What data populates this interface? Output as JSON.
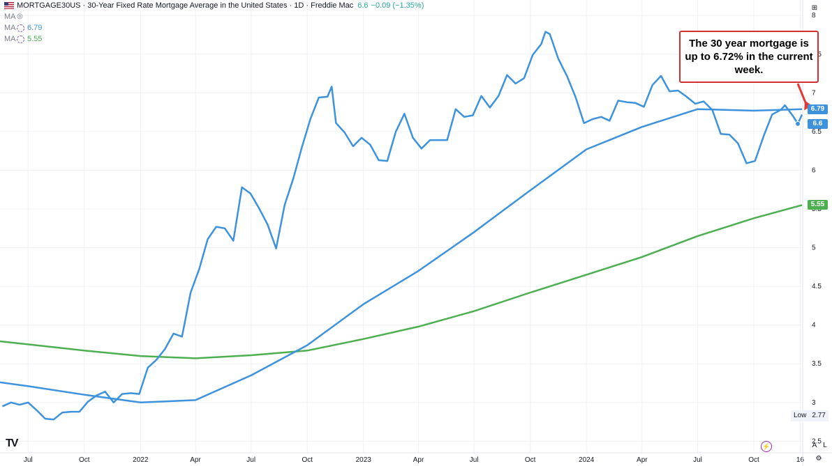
{
  "header": {
    "symbol": "MORTGAGE30US",
    "title": "30-Year Fixed Rate Mortgage Average in the United States",
    "interval": "1D",
    "source": "Freddie Mac",
    "last_value": "6.6",
    "change": "−0.09 (−1.35%)",
    "change_color": "#26a69a"
  },
  "legend": [
    {
      "label": "MA",
      "value": "",
      "color": "#787b86",
      "icon": "eye-icon"
    },
    {
      "label": "MA",
      "value": "6.79",
      "color": "#3d92dd",
      "icon": "ma-settings-icon"
    },
    {
      "label": "MA",
      "value": "5.55",
      "color": "#4caf50",
      "icon": "ma-settings-icon"
    }
  ],
  "annotation": {
    "text": "The 30 year mortgage is up to 6.72% in the current week.",
    "border_color": "#d32f2f",
    "arrow_color": "#e53935"
  },
  "price_labels": [
    {
      "value": "6.79",
      "color": "#3d92dd"
    },
    {
      "value": "6.6",
      "color": "#3d92dd"
    },
    {
      "value": "5.55",
      "color": "#4caf50"
    }
  ],
  "low_label": {
    "label": "Low",
    "value": "2.77"
  },
  "corner_buttons": {
    "auto": "A",
    "log": "L",
    "settings": "⚙",
    "scale": "⊞"
  },
  "logo": "TV",
  "colors": {
    "price": "#3d92dd",
    "ma_fast": "#3d92dd",
    "ma_slow": "#4caf50",
    "grid": "#f0f3fa"
  },
  "chart_data": {
    "type": "line",
    "title": "30-Year Fixed Rate Mortgage Average in the United States",
    "xlabel": "",
    "ylabel": "",
    "ylim": [
      2.35,
      8.2
    ],
    "x_range": [
      "2021-05-16",
      "2024-12-20"
    ],
    "grid": true,
    "y_ticks": [
      "2.5",
      "3",
      "3.5",
      "4",
      "4.5",
      "5",
      "5.5",
      "6",
      "6.5",
      "7",
      "7.5",
      "8"
    ],
    "x_ticks": [
      {
        "date": "2021-07-01",
        "label": "Jul"
      },
      {
        "date": "2021-10-01",
        "label": "Oct"
      },
      {
        "date": "2022-01-01",
        "label": "2022"
      },
      {
        "date": "2022-04-01",
        "label": "Apr"
      },
      {
        "date": "2022-07-01",
        "label": "Jul"
      },
      {
        "date": "2022-10-01",
        "label": "Oct"
      },
      {
        "date": "2023-01-01",
        "label": "2023"
      },
      {
        "date": "2023-04-01",
        "label": "Apr"
      },
      {
        "date": "2023-07-01",
        "label": "Jul"
      },
      {
        "date": "2023-10-01",
        "label": "Oct"
      },
      {
        "date": "2024-01-01",
        "label": "2024"
      },
      {
        "date": "2024-04-01",
        "label": "Apr"
      },
      {
        "date": "2024-07-01",
        "label": "Jul"
      },
      {
        "date": "2024-10-01",
        "label": "Oct"
      },
      {
        "date": "2024-12-16",
        "label": "16"
      }
    ],
    "series": [
      {
        "name": "MORTGAGE30US",
        "color": "#3d92dd",
        "points": [
          [
            "2021-05-20",
            2.95
          ],
          [
            "2021-06-03",
            3.0
          ],
          [
            "2021-06-17",
            2.97
          ],
          [
            "2021-07-01",
            3.0
          ],
          [
            "2021-07-15",
            2.9
          ],
          [
            "2021-07-29",
            2.79
          ],
          [
            "2021-08-12",
            2.78
          ],
          [
            "2021-08-26",
            2.87
          ],
          [
            "2021-09-09",
            2.88
          ],
          [
            "2021-09-23",
            2.88
          ],
          [
            "2021-10-07",
            3.01
          ],
          [
            "2021-10-21",
            3.09
          ],
          [
            "2021-11-04",
            3.14
          ],
          [
            "2021-11-18",
            3.0
          ],
          [
            "2021-12-02",
            3.11
          ],
          [
            "2021-12-16",
            3.12
          ],
          [
            "2021-12-30",
            3.11
          ],
          [
            "2022-01-13",
            3.45
          ],
          [
            "2022-01-27",
            3.55
          ],
          [
            "2022-02-10",
            3.69
          ],
          [
            "2022-02-24",
            3.89
          ],
          [
            "2022-03-10",
            3.85
          ],
          [
            "2022-03-24",
            4.42
          ],
          [
            "2022-04-07",
            4.72
          ],
          [
            "2022-04-21",
            5.11
          ],
          [
            "2022-05-05",
            5.27
          ],
          [
            "2022-05-19",
            5.25
          ],
          [
            "2022-06-02",
            5.09
          ],
          [
            "2022-06-16",
            5.78
          ],
          [
            "2022-06-30",
            5.7
          ],
          [
            "2022-07-14",
            5.51
          ],
          [
            "2022-07-28",
            5.3
          ],
          [
            "2022-08-11",
            4.99
          ],
          [
            "2022-08-25",
            5.55
          ],
          [
            "2022-09-08",
            5.89
          ],
          [
            "2022-09-22",
            6.29
          ],
          [
            "2022-10-06",
            6.66
          ],
          [
            "2022-10-20",
            6.94
          ],
          [
            "2022-11-03",
            6.95
          ],
          [
            "2022-11-10",
            7.08
          ],
          [
            "2022-11-17",
            6.61
          ],
          [
            "2022-12-01",
            6.49
          ],
          [
            "2022-12-15",
            6.31
          ],
          [
            "2022-12-29",
            6.42
          ],
          [
            "2023-01-12",
            6.33
          ],
          [
            "2023-01-26",
            6.13
          ],
          [
            "2023-02-09",
            6.12
          ],
          [
            "2023-02-23",
            6.5
          ],
          [
            "2023-03-09",
            6.73
          ],
          [
            "2023-03-23",
            6.42
          ],
          [
            "2023-04-06",
            6.28
          ],
          [
            "2023-04-20",
            6.39
          ],
          [
            "2023-05-04",
            6.39
          ],
          [
            "2023-05-18",
            6.39
          ],
          [
            "2023-06-01",
            6.79
          ],
          [
            "2023-06-15",
            6.69
          ],
          [
            "2023-06-29",
            6.71
          ],
          [
            "2023-07-13",
            6.96
          ],
          [
            "2023-07-27",
            6.81
          ],
          [
            "2023-08-10",
            6.96
          ],
          [
            "2023-08-24",
            7.23
          ],
          [
            "2023-09-07",
            7.12
          ],
          [
            "2023-09-21",
            7.19
          ],
          [
            "2023-10-05",
            7.49
          ],
          [
            "2023-10-19",
            7.63
          ],
          [
            "2023-10-26",
            7.79
          ],
          [
            "2023-11-02",
            7.76
          ],
          [
            "2023-11-16",
            7.44
          ],
          [
            "2023-11-30",
            7.22
          ],
          [
            "2023-12-14",
            6.95
          ],
          [
            "2023-12-28",
            6.61
          ],
          [
            "2024-01-11",
            6.66
          ],
          [
            "2024-01-25",
            6.69
          ],
          [
            "2024-02-08",
            6.64
          ],
          [
            "2024-02-22",
            6.9
          ],
          [
            "2024-03-07",
            6.88
          ],
          [
            "2024-03-21",
            6.87
          ],
          [
            "2024-04-04",
            6.82
          ],
          [
            "2024-04-18",
            7.1
          ],
          [
            "2024-05-02",
            7.22
          ],
          [
            "2024-05-16",
            7.02
          ],
          [
            "2024-05-30",
            7.03
          ],
          [
            "2024-06-13",
            6.95
          ],
          [
            "2024-06-27",
            6.86
          ],
          [
            "2024-07-11",
            6.89
          ],
          [
            "2024-07-25",
            6.78
          ],
          [
            "2024-08-08",
            6.47
          ],
          [
            "2024-08-22",
            6.46
          ],
          [
            "2024-09-05",
            6.35
          ],
          [
            "2024-09-19",
            6.09
          ],
          [
            "2024-10-03",
            6.12
          ],
          [
            "2024-10-17",
            6.44
          ],
          [
            "2024-10-31",
            6.72
          ],
          [
            "2024-11-14",
            6.78
          ],
          [
            "2024-11-21",
            6.84
          ],
          [
            "2024-12-05",
            6.69
          ],
          [
            "2024-12-12",
            6.6
          ],
          [
            "2024-12-19",
            6.72
          ]
        ]
      },
      {
        "name": "MA",
        "color": "#3d92dd",
        "points": [
          [
            "2021-05-16",
            3.26
          ],
          [
            "2021-07-01",
            3.21
          ],
          [
            "2021-10-01",
            3.1
          ],
          [
            "2022-01-01",
            3.0
          ],
          [
            "2022-04-01",
            3.03
          ],
          [
            "2022-07-01",
            3.35
          ],
          [
            "2022-10-01",
            3.74
          ],
          [
            "2023-01-01",
            4.27
          ],
          [
            "2023-04-01",
            4.7
          ],
          [
            "2023-07-01",
            5.2
          ],
          [
            "2023-10-01",
            5.74
          ],
          [
            "2024-01-01",
            6.27
          ],
          [
            "2024-04-01",
            6.56
          ],
          [
            "2024-07-01",
            6.79
          ],
          [
            "2024-10-01",
            6.77
          ],
          [
            "2024-12-19",
            6.79
          ]
        ]
      },
      {
        "name": "MA",
        "color": "#4caf50",
        "points": [
          [
            "2021-05-16",
            3.79
          ],
          [
            "2021-07-01",
            3.75
          ],
          [
            "2021-10-01",
            3.67
          ],
          [
            "2022-01-01",
            3.6
          ],
          [
            "2022-04-01",
            3.57
          ],
          [
            "2022-07-01",
            3.61
          ],
          [
            "2022-10-01",
            3.67
          ],
          [
            "2023-01-01",
            3.82
          ],
          [
            "2023-04-01",
            3.98
          ],
          [
            "2023-07-01",
            4.18
          ],
          [
            "2023-10-01",
            4.42
          ],
          [
            "2024-01-01",
            4.65
          ],
          [
            "2024-04-01",
            4.88
          ],
          [
            "2024-07-01",
            5.15
          ],
          [
            "2024-10-01",
            5.38
          ],
          [
            "2024-12-19",
            5.55
          ]
        ]
      }
    ]
  }
}
